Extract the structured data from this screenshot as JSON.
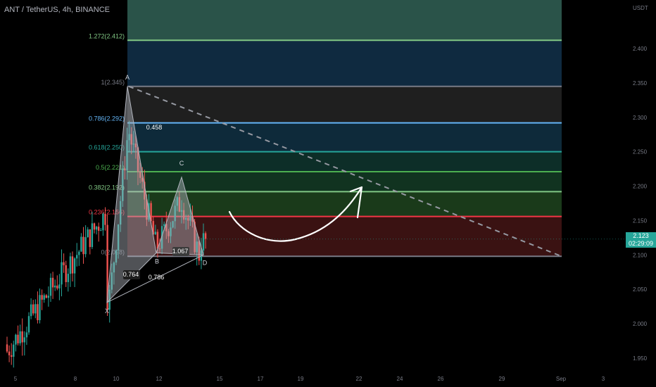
{
  "header": {
    "title": "ANT / TetherUS, 4h, BINANCE"
  },
  "price_axis": {
    "unit": "USDT",
    "ticks": [
      "2.400",
      "2.350",
      "2.300",
      "2.250",
      "2.200",
      "2.150",
      "2.100",
      "2.050",
      "2.000",
      "1.950"
    ],
    "last_price": "2.123",
    "countdown": "02:29:09"
  },
  "time_axis": {
    "ticks": [
      "5",
      "8",
      "10",
      "12",
      "15",
      "17",
      "19",
      "22",
      "24",
      "26",
      "29",
      "Sep",
      "3"
    ]
  },
  "colors": {
    "up": "#26a69a",
    "down": "#ef5350",
    "pattern": "#b2b5be",
    "trend": "#9598a1"
  },
  "chart_data": {
    "type": "candlestick",
    "title": "ANT / TetherUS, 4h, BINANCE",
    "ylim": [
      1.935,
      2.475
    ],
    "fib_levels": [
      {
        "ratio": "1.272",
        "price": 2.412,
        "label": "1.272(2.412)",
        "color": "#81c784"
      },
      {
        "ratio": "1",
        "price": 2.345,
        "label": "1(2.345)",
        "color": "#787b86"
      },
      {
        "ratio": "0.786",
        "price": 2.292,
        "label": "0.786(2.292)",
        "color": "#64b5f6"
      },
      {
        "ratio": "0.618",
        "price": 2.25,
        "label": "0.618(2.250)",
        "color": "#26a69a"
      },
      {
        "ratio": "0.5",
        "price": 2.221,
        "label": "0.5(2.221)",
        "color": "#4caf50"
      },
      {
        "ratio": "0.382",
        "price": 2.192,
        "label": "0.382(2.192)",
        "color": "#81c784"
      },
      {
        "ratio": "0.236",
        "price": 2.156,
        "label": "0.236(2.156)",
        "color": "#f23645"
      },
      {
        "ratio": "0",
        "price": 2.098,
        "label": "0(2.098)",
        "color": "#787b86"
      }
    ],
    "pattern_points": [
      {
        "name": "X",
        "price": 2.031
      },
      {
        "name": "A",
        "price": 2.345
      },
      {
        "name": "B",
        "price": 2.103
      },
      {
        "name": "C",
        "price": 2.213
      },
      {
        "name": "D",
        "price": 2.1
      }
    ],
    "pattern_ratios": [
      "0.764",
      "0.786",
      "0.458",
      "1.067"
    ],
    "current_price": 2.123
  }
}
